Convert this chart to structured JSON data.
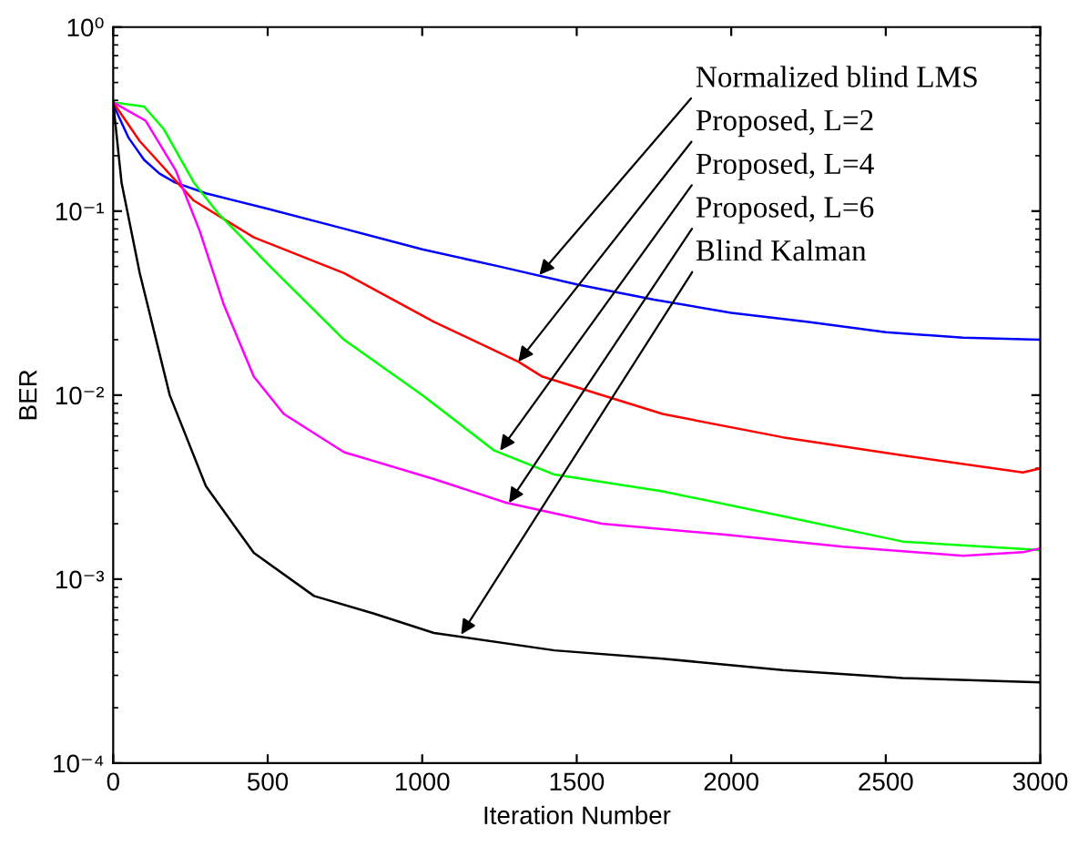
{
  "chart_data": {
    "type": "line",
    "xlabel": "Iteration Number",
    "ylabel": "BER",
    "log": "y",
    "grid": false,
    "marker": "none",
    "line_style": "solid",
    "xlim": [
      0,
      3000
    ],
    "xticks": [
      0,
      500,
      1000,
      1500,
      2000,
      2500,
      3000
    ],
    "ylim": [
      0.0001,
      1
    ],
    "yticks": [
      {
        "value": 0.0001,
        "label": "10⁻⁴"
      },
      {
        "value": 0.001,
        "label": "10⁻³"
      },
      {
        "value": 0.01,
        "label": "10⁻²"
      },
      {
        "value": 0.1,
        "label": "10⁻¹"
      },
      {
        "value": 1,
        "label": "10⁰"
      }
    ],
    "series": [
      {
        "color": "#0000ff",
        "x": [
          0,
          50,
          100,
          150,
          200,
          300,
          500,
          750,
          1000,
          1250,
          1500,
          1750,
          2000,
          2250,
          2500,
          2750,
          3000
        ],
        "values": [
          0.38,
          0.25,
          0.19,
          0.16,
          0.143,
          0.125,
          0.103,
          0.08,
          0.062,
          0.05,
          0.04,
          0.033,
          0.028,
          0.025,
          0.022,
          0.0205,
          0.02
        ]
      },
      {
        "color": "#ff0000",
        "x": [
          0,
          86,
          261,
          455,
          747,
          1038,
          1311,
          1389,
          1778,
          2167,
          2555,
          2944,
          3000
        ],
        "values": [
          0.39,
          0.24,
          0.114,
          0.072,
          0.046,
          0.025,
          0.0152,
          0.0126,
          0.0079,
          0.0059,
          0.0047,
          0.0038,
          0.004
        ]
      },
      {
        "color": "#00ff00",
        "x": [
          0,
          100,
          163,
          261,
          338,
          513,
          747,
          1000,
          1233,
          1428,
          1778,
          2167,
          2555,
          3000
        ],
        "values": [
          0.39,
          0.37,
          0.28,
          0.143,
          0.098,
          0.049,
          0.02,
          0.01,
          0.005,
          0.0037,
          0.003,
          0.0022,
          0.0016,
          0.00144
        ]
      },
      {
        "color": "#ff00ff",
        "x": [
          0,
          105,
          202,
          280,
          358,
          455,
          552,
          747,
          1038,
          1272,
          1581,
          1972,
          2361,
          2750,
          2944,
          3000
        ],
        "values": [
          0.39,
          0.31,
          0.167,
          0.078,
          0.031,
          0.0126,
          0.0079,
          0.0049,
          0.0035,
          0.0026,
          0.002,
          0.00175,
          0.0015,
          0.00134,
          0.0014,
          0.00147
        ]
      },
      {
        "color": "#000000",
        "x": [
          0,
          27,
          86,
          183,
          300,
          455,
          650,
          844,
          1038,
          1428,
          1778,
          2167,
          2555,
          3000
        ],
        "values": [
          0.39,
          0.143,
          0.046,
          0.01,
          0.0032,
          0.00139,
          0.00081,
          0.00065,
          0.00051,
          0.00041,
          0.00037,
          0.00032,
          0.00029,
          0.000275
        ]
      }
    ],
    "annotations": [
      {
        "text": "Normalized blind LMS",
        "x": 1379,
        "y": 0.045
      },
      {
        "text": "Proposed, L=2",
        "x": 1311,
        "y": 0.0152
      },
      {
        "text": "Proposed, L=4",
        "x": 1252,
        "y": 0.005
      },
      {
        "text": "Proposed, L=6",
        "x": 1281,
        "y": 0.0026
      },
      {
        "text": "Blind Kalman",
        "x": 1126,
        "y": 0.0005
      }
    ]
  }
}
